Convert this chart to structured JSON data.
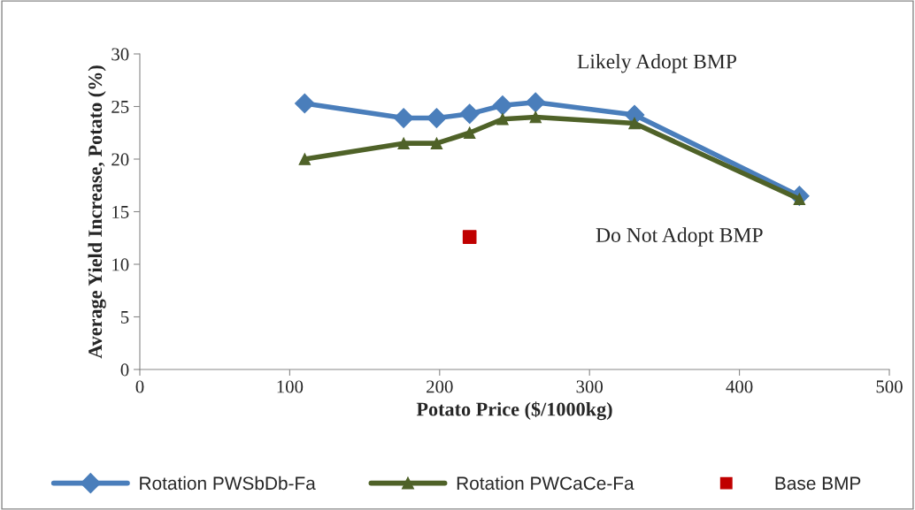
{
  "chart_data": {
    "type": "line",
    "xlabel": "Potato Price ($/1000kg)",
    "ylabel": "Average Yield Increase, Potato (%)",
    "xlim": [
      0,
      500
    ],
    "xticks": [
      0,
      100,
      200,
      300,
      400,
      500
    ],
    "ylim": [
      0,
      30
    ],
    "yticks": [
      0,
      5,
      10,
      15,
      20,
      25,
      30
    ],
    "grid": false,
    "legend": "bottom",
    "series": [
      {
        "name": "Rotation PWSbDb-Fa",
        "color": "#4a7ebb",
        "marker": "diamond",
        "x": [
          110,
          176,
          198,
          220,
          242,
          264,
          330,
          440
        ],
        "values": [
          25.3,
          23.9,
          23.9,
          24.3,
          25.1,
          25.4,
          24.2,
          16.5
        ]
      },
      {
        "name": "Rotation PWCaCe-Fa",
        "color": "#4f6228",
        "marker": "triangle",
        "x": [
          110,
          176,
          198,
          220,
          242,
          264,
          330,
          440
        ],
        "values": [
          20,
          21.5,
          21.5,
          22.5,
          23.8,
          24,
          23.4,
          16.2
        ]
      },
      {
        "name": "Base BMP",
        "type": "scatter",
        "color": "#c00000",
        "marker": "square",
        "x": [
          220
        ],
        "values": [
          12.6
        ]
      }
    ],
    "annotations": [
      "Likely Adopt BMP",
      "Do Not Adopt BMP"
    ]
  }
}
